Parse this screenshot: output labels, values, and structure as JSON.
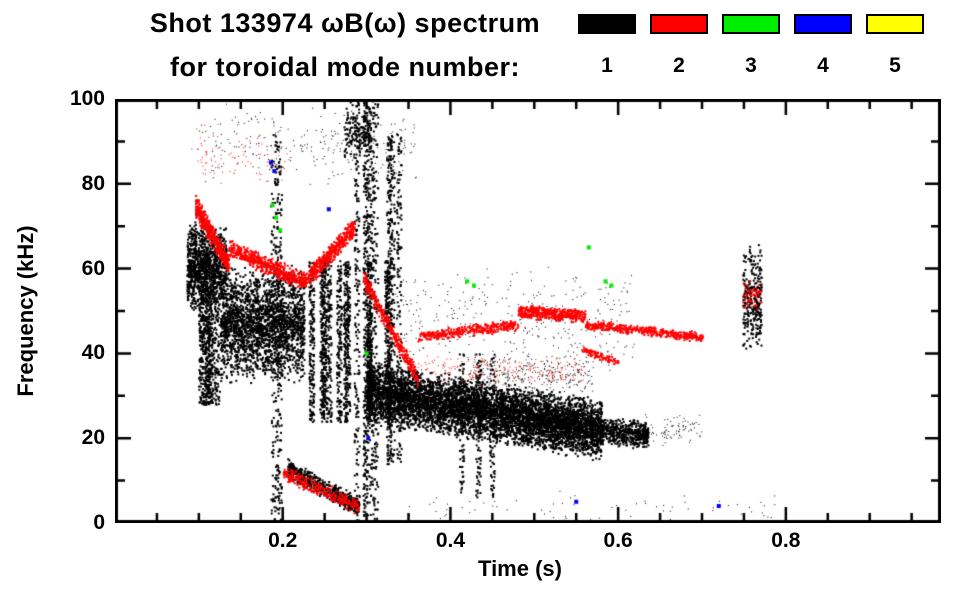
{
  "title": {
    "line1": "Shot 133974 ωB(ω) spectrum",
    "line2": "for toroidal mode number:"
  },
  "legend": {
    "entries": [
      {
        "label": "1",
        "color": "#000000"
      },
      {
        "label": "2",
        "color": "#ff0000"
      },
      {
        "label": "3",
        "color": "#00ee00"
      },
      {
        "label": "4",
        "color": "#0000ff"
      },
      {
        "label": "5",
        "color": "#ffff00"
      }
    ]
  },
  "chart_data": {
    "type": "scatter",
    "title": "Shot 133974 ωB(ω) spectrum for toroidal mode number: 1 2 3 4 5",
    "xlabel": "Time (s)",
    "ylabel": "Frequency (kHz)",
    "xlim": [
      0.0,
      0.985
    ],
    "ylim": [
      0,
      100
    ],
    "x_minor_step": 0.05,
    "y_minor_step": 10,
    "grid": false,
    "legend_position": "top-right",
    "xticks": [
      {
        "value": 0.2,
        "label": "0.2"
      },
      {
        "value": 0.4,
        "label": "0.4"
      },
      {
        "value": 0.6,
        "label": "0.6"
      },
      {
        "value": 0.8,
        "label": "0.8"
      }
    ],
    "yticks": [
      {
        "value": 0,
        "label": "0"
      },
      {
        "value": 20,
        "label": "20"
      },
      {
        "value": 40,
        "label": "40"
      },
      {
        "value": 60,
        "label": "60"
      },
      {
        "value": 80,
        "label": "80"
      },
      {
        "value": 100,
        "label": "100"
      }
    ],
    "modes": [
      {
        "mode": 1,
        "label": "1",
        "color": "#000000"
      },
      {
        "mode": 2,
        "label": "2",
        "color": "#ff0000"
      },
      {
        "mode": 3,
        "label": "3",
        "color": "#00ee00"
      },
      {
        "mode": 4,
        "label": "4",
        "color": "#0000ff"
      },
      {
        "mode": 5,
        "label": "5",
        "color": "#ffff00"
      }
    ],
    "clusters": [
      {
        "mode": 1,
        "kind": "blob",
        "t": [
          0.085,
          0.132
        ],
        "f": [
          50,
          72
        ],
        "n": 1100,
        "size": 2
      },
      {
        "mode": 1,
        "kind": "columns",
        "t": [
          0.088,
          0.14
        ],
        "f": [
          28,
          56
        ],
        "cols": 8,
        "n": 650,
        "size": 2
      },
      {
        "mode": 1,
        "kind": "blob",
        "t": [
          0.125,
          0.225
        ],
        "f": [
          33,
          61
        ],
        "n": 2300,
        "size": 2
      },
      {
        "mode": 1,
        "kind": "columns",
        "t": [
          0.22,
          0.33
        ],
        "f": [
          24,
          62
        ],
        "cols": 10,
        "n": 1600,
        "size": 2
      },
      {
        "mode": 1,
        "kind": "columns",
        "t": [
          0.188,
          0.21
        ],
        "f": [
          0,
          92
        ],
        "cols": 3,
        "n": 320,
        "size": 2
      },
      {
        "mode": 1,
        "kind": "columns",
        "t": [
          0.283,
          0.318
        ],
        "f": [
          0,
          100
        ],
        "cols": 5,
        "n": 850,
        "size": 2
      },
      {
        "mode": 1,
        "kind": "columns",
        "t": [
          0.325,
          0.35
        ],
        "f": [
          14,
          92
        ],
        "cols": 4,
        "n": 520,
        "size": 2
      },
      {
        "mode": 1,
        "kind": "band",
        "t": [
          0.205,
          0.29
        ],
        "fc": [
          13,
          4
        ],
        "th": 5,
        "n": 480,
        "size": 2
      },
      {
        "mode": 1,
        "kind": "band",
        "t": [
          0.3,
          0.58
        ],
        "fc": [
          31,
          22
        ],
        "th": 15,
        "n": 6200,
        "size": 2
      },
      {
        "mode": 1,
        "kind": "band",
        "t": [
          0.58,
          0.635
        ],
        "fc": [
          22,
          21
        ],
        "th": 7,
        "n": 480,
        "size": 2
      },
      {
        "mode": 1,
        "kind": "blob",
        "t": [
          0.33,
          0.62
        ],
        "f": [
          33,
          62
        ],
        "n": 380,
        "size": 1
      },
      {
        "mode": 1,
        "kind": "blob",
        "t": [
          0.1,
          0.36
        ],
        "f": [
          79,
          100
        ],
        "n": 250,
        "size": 1
      },
      {
        "mode": 1,
        "kind": "blob",
        "t": [
          0.272,
          0.305
        ],
        "f": [
          84,
          100
        ],
        "n": 170,
        "size": 2
      },
      {
        "mode": 1,
        "kind": "columns",
        "t": [
          0.4,
          0.46
        ],
        "f": [
          6,
          40
        ],
        "cols": 3,
        "n": 260,
        "size": 2
      },
      {
        "mode": 1,
        "kind": "blob",
        "t": [
          0.748,
          0.77
        ],
        "f": [
          40,
          66
        ],
        "n": 300,
        "size": 2
      },
      {
        "mode": 1,
        "kind": "blob",
        "t": [
          0.35,
          0.8
        ],
        "f": [
          0,
          8
        ],
        "n": 70,
        "size": 1
      },
      {
        "mode": 1,
        "kind": "blob",
        "t": [
          0.63,
          0.7
        ],
        "f": [
          18,
          26
        ],
        "n": 90,
        "size": 1
      },
      {
        "mode": 1,
        "kind": "blob",
        "t": [
          0.42,
          0.57
        ],
        "f": [
          30,
          40
        ],
        "n": 300,
        "size": 1
      },
      {
        "mode": 2,
        "kind": "band",
        "t": [
          0.095,
          0.135
        ],
        "fc": [
          75,
          61
        ],
        "th": 6,
        "n": 420,
        "size": 2
      },
      {
        "mode": 2,
        "kind": "band",
        "t": [
          0.135,
          0.225
        ],
        "fc": [
          65,
          57
        ],
        "th": 5,
        "n": 520,
        "size": 2
      },
      {
        "mode": 2,
        "kind": "band",
        "t": [
          0.225,
          0.285
        ],
        "fc": [
          57,
          70
        ],
        "th": 5,
        "n": 420,
        "size": 2
      },
      {
        "mode": 2,
        "kind": "band",
        "t": [
          0.295,
          0.36
        ],
        "fc": [
          58,
          34
        ],
        "th": 5,
        "n": 330,
        "size": 2
      },
      {
        "mode": 2,
        "kind": "band",
        "t": [
          0.36,
          0.48
        ],
        "fc": [
          44,
          47
        ],
        "th": 3,
        "n": 340,
        "size": 2
      },
      {
        "mode": 2,
        "kind": "band",
        "t": [
          0.48,
          0.56
        ],
        "fc": [
          50,
          49
        ],
        "th": 3.5,
        "n": 430,
        "size": 2
      },
      {
        "mode": 2,
        "kind": "band",
        "t": [
          0.56,
          0.7
        ],
        "fc": [
          47,
          44
        ],
        "th": 2.5,
        "n": 430,
        "size": 2
      },
      {
        "mode": 2,
        "kind": "blob",
        "t": [
          0.36,
          0.56
        ],
        "f": [
          32,
          40
        ],
        "n": 200,
        "size": 1
      },
      {
        "mode": 2,
        "kind": "band",
        "t": [
          0.2,
          0.29
        ],
        "fc": [
          12,
          4
        ],
        "th": 4,
        "n": 280,
        "size": 2
      },
      {
        "mode": 2,
        "kind": "blob",
        "t": [
          0.135,
          0.21
        ],
        "f": [
          80,
          92
        ],
        "n": 50,
        "size": 1
      },
      {
        "mode": 2,
        "kind": "blob",
        "t": [
          0.748,
          0.77
        ],
        "f": [
          50,
          58
        ],
        "n": 45,
        "size": 2
      },
      {
        "mode": 2,
        "kind": "blob",
        "t": [
          0.09,
          0.13
        ],
        "f": [
          80,
          95
        ],
        "n": 40,
        "size": 1
      },
      {
        "mode": 2,
        "kind": "band",
        "t": [
          0.555,
          0.6
        ],
        "fc": [
          41,
          38
        ],
        "th": 2,
        "n": 90,
        "size": 2
      },
      {
        "mode": 3,
        "kind": "points",
        "pts": [
          [
            0.188,
            75
          ],
          [
            0.192,
            72
          ],
          [
            0.197,
            69
          ],
          [
            0.42,
            57
          ],
          [
            0.428,
            56
          ],
          [
            0.565,
            65
          ],
          [
            0.585,
            57
          ],
          [
            0.592,
            56
          ],
          [
            0.3,
            40
          ]
        ],
        "size": 4
      },
      {
        "mode": 4,
        "kind": "points",
        "pts": [
          [
            0.186,
            85
          ],
          [
            0.19,
            83
          ],
          [
            0.255,
            74
          ],
          [
            0.302,
            20
          ],
          [
            0.55,
            5
          ],
          [
            0.72,
            4
          ]
        ],
        "size": 4
      }
    ]
  }
}
